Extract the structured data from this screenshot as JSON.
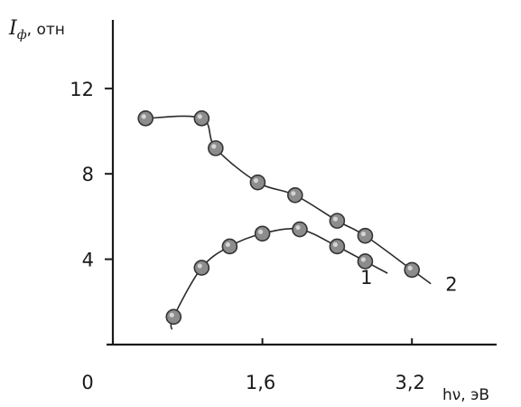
{
  "chart_data": {
    "type": "scatter",
    "ylabel": {
      "symbol": "I",
      "subscript": "ф",
      "unit": ", отн"
    },
    "xlabel": "hν, эВ",
    "x_ticks": [
      {
        "value": 0,
        "label": "0"
      },
      {
        "value": 1.6,
        "label": "1,6"
      },
      {
        "value": 3.2,
        "label": "3,2"
      }
    ],
    "y_ticks": [
      {
        "value": 4,
        "label": "4"
      },
      {
        "value": 8,
        "label": "8"
      },
      {
        "value": 12,
        "label": "12"
      }
    ],
    "xlim": [
      0,
      3.8
    ],
    "ylim": [
      0,
      14
    ],
    "grid": false,
    "series": [
      {
        "label": "1",
        "points": [
          {
            "x": 0.65,
            "y": 1.3
          },
          {
            "x": 0.95,
            "y": 3.6
          },
          {
            "x": 1.25,
            "y": 4.6
          },
          {
            "x": 1.6,
            "y": 5.2
          },
          {
            "x": 2.0,
            "y": 5.4
          },
          {
            "x": 2.4,
            "y": 4.6
          },
          {
            "x": 2.7,
            "y": 3.9
          }
        ]
      },
      {
        "label": "2",
        "points": [
          {
            "x": 0.35,
            "y": 10.6
          },
          {
            "x": 0.95,
            "y": 10.6
          },
          {
            "x": 1.1,
            "y": 9.2
          },
          {
            "x": 1.55,
            "y": 7.6
          },
          {
            "x": 1.95,
            "y": 7.0
          },
          {
            "x": 2.4,
            "y": 5.8
          },
          {
            "x": 2.7,
            "y": 5.1
          },
          {
            "x": 3.2,
            "y": 3.5
          }
        ]
      }
    ]
  }
}
